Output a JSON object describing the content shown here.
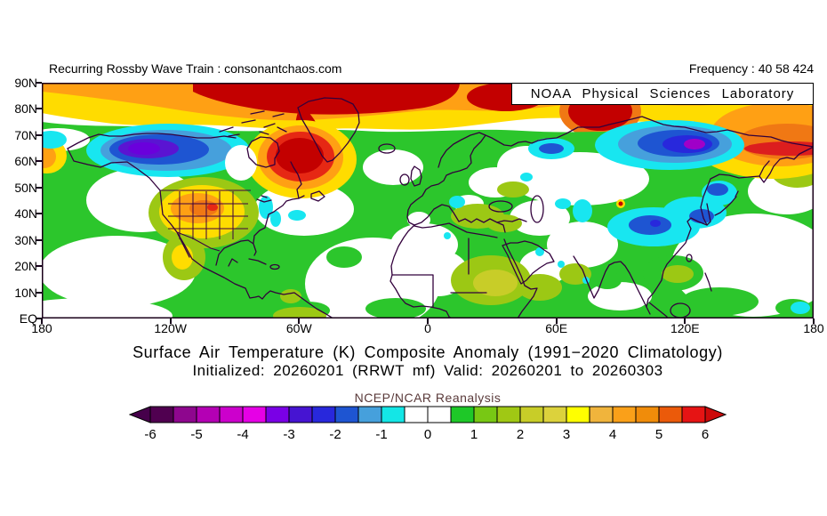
{
  "page_background": "#FFFFFF",
  "header": {
    "left": "Recurring Rossby Wave Train : consonantchaos.com",
    "right": "Frequency : 40 58 424"
  },
  "map": {
    "credit_box": "NOAA Physical Sciences Laboratory",
    "lat_labels": [
      "90N",
      "80N",
      "70N",
      "60N",
      "50N",
      "40N",
      "30N",
      "20N",
      "10N",
      "EQ"
    ],
    "lon_labels": [
      "180",
      "120W",
      "60W",
      "0",
      "60E",
      "120E",
      "180"
    ]
  },
  "titles": {
    "line1": "Surface Air Temperature (K) Composite Anomaly (1991−2020 Climatology)",
    "line2": "Initialized: 20260201 (RRWT mf) Valid: 20260201 to 20260303"
  },
  "colorbar": {
    "title": "NCEP/NCAR Reanalysis",
    "tick_labels": [
      "-6",
      "-5",
      "-4",
      "-3",
      "-2",
      "-1",
      "0",
      "1",
      "2",
      "3",
      "4",
      "5",
      "6"
    ],
    "segment_colors": [
      "#500050",
      "#8E068E",
      "#B400B4",
      "#CC00CC",
      "#E600E6",
      "#7A00E6",
      "#4614D2",
      "#2828DC",
      "#1E55D2",
      "#46A0DC",
      "#14E6E6",
      "#FFFFFF",
      "#FFFFFF",
      "#1EC828",
      "#78C814",
      "#A0C814",
      "#C8CD28",
      "#DCD23C",
      "#FFFF00",
      "#F0B43C",
      "#FAA019",
      "#F08C0A",
      "#EB5A0A",
      "#E61414"
    ],
    "left_arrow_color": "#46004B",
    "right_arrow_color": "#CD0A0A"
  },
  "chart_data": {
    "type": "heatmap",
    "title": "Surface Air Temperature (K) Composite Anomaly (1991−2020 Climatology)",
    "subtitle": "Initialized: 20260201 (RRWT mf) Valid: 20260201 to 20260303",
    "dataset": "NCEP/NCAR Reanalysis",
    "source": "NOAA Physical Sciences Laboratory",
    "site": "Recurring Rossby Wave Train : consonantchaos.com",
    "frequency": "40 58 424",
    "variable": "Surface Air Temperature anomaly",
    "units": "K",
    "projection": "equirectangular",
    "x_axis": {
      "label": "longitude",
      "ticks": [
        "180",
        "120W",
        "60W",
        "0",
        "60E",
        "120E",
        "180"
      ],
      "range_deg": [
        -180,
        180
      ]
    },
    "y_axis": {
      "label": "latitude",
      "ticks": [
        "90N",
        "80N",
        "70N",
        "60N",
        "50N",
        "40N",
        "30N",
        "20N",
        "10N",
        "EQ"
      ],
      "range_deg": [
        0,
        90
      ]
    },
    "colorbar_levels": [
      -6,
      -5,
      -4,
      -3,
      -2,
      -1,
      0,
      1,
      2,
      3,
      4,
      5,
      6
    ],
    "colorbar_step": 0.5,
    "legend_position": "bottom",
    "anomaly_features": [
      {
        "region": "Arctic Ocean / Canadian Arctic archipelago (75-90N circumpolar)",
        "anomaly_k": "+4 to +6 and above",
        "sign": "warm"
      },
      {
        "region": "Baffin Island / Davis Strait / Labrador (55-75N, 80W-45W)",
        "anomaly_k": "+5 to +6 and above",
        "sign": "warm"
      },
      {
        "region": "Novaya Zemlya / Barents-Kara seas (70-82N, 40E-75E)",
        "anomaly_k": "+4 to +6",
        "sign": "warm"
      },
      {
        "region": "Chukotka / northeast Siberia (58-72N, 150E-180)",
        "anomaly_k": "+3 to +5.5",
        "sign": "warm"
      },
      {
        "region": "Western US / Rockies (30-48N, 120W-95W)",
        "anomaly_k": "+2 to +4.5 (peak near Colorado/Nebraska)",
        "sign": "warm"
      },
      {
        "region": "Alaska / Yukon / NW Canada (58-72N, 175W-115W)",
        "anomaly_k": "-2 to -4 (violet core)",
        "sign": "cold"
      },
      {
        "region": "Central Siberia (60-75N, 85E-145E)",
        "anomaly_k": "-2 to -4.5 (magenta core ~130E)",
        "sign": "cold"
      },
      {
        "region": "Mongolia / northern China (35-50N, 85E-125E)",
        "anomaly_k": "-1 to -3",
        "sign": "cold"
      },
      {
        "region": "Northwest Russia spot (~60N 45E)",
        "anomaly_k": "-1 to -2",
        "sign": "cold"
      },
      {
        "region": "Scattered spots: US east coast, west Atlantic 40N, west of Iberia, Caspian, Sudan, Somalia",
        "anomaly_k": "-0.5 to -1.5",
        "sign": "cold"
      },
      {
        "region": "Background over much of oceans, Africa, Europe, tropics",
        "anomaly_k": "0 to +1 (green) or near 0 (white)",
        "sign": "neutral"
      },
      {
        "region": "Sahel / West Africa, Balkans-Turkey, Mexico",
        "anomaly_k": "+1 to +2.5",
        "sign": "warm"
      }
    ]
  }
}
